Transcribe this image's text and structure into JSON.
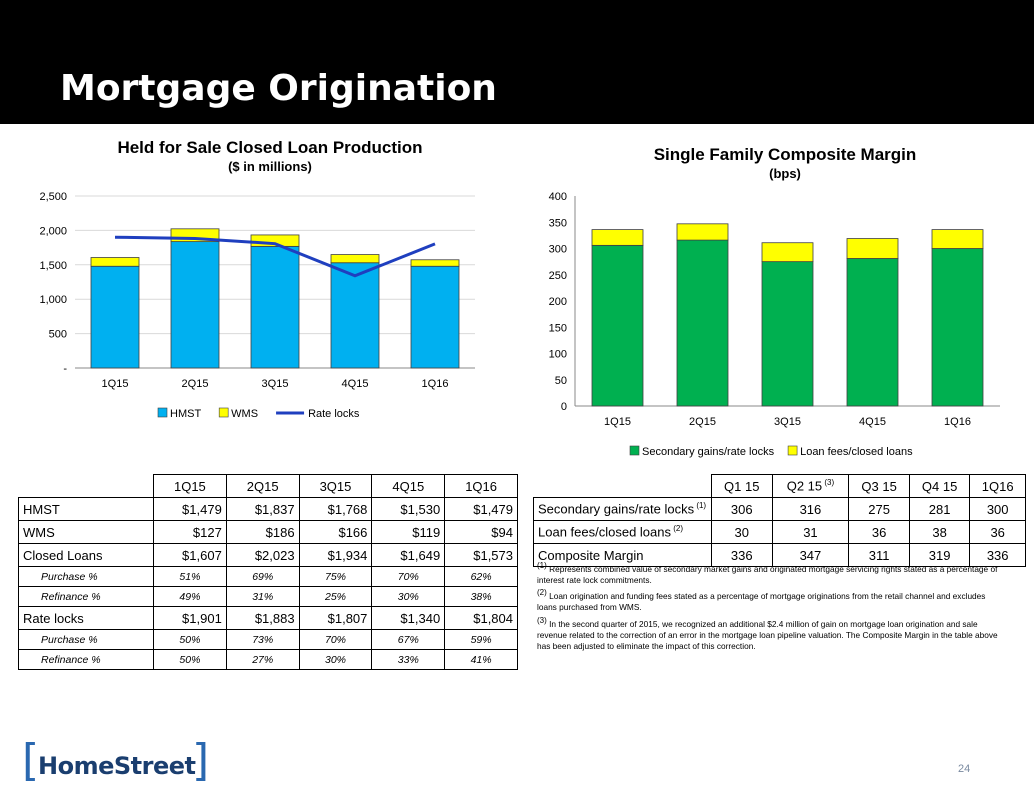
{
  "page": {
    "title": "Mortgage Origination",
    "page_number": "24"
  },
  "chart_data": [
    {
      "type": "bar",
      "stacked": true,
      "title": "Held for Sale Closed Loan Production",
      "subtitle": "($ in millions)",
      "categories": [
        "1Q15",
        "2Q15",
        "3Q15",
        "4Q15",
        "1Q16"
      ],
      "series": [
        {
          "name": "HMST",
          "type": "bar",
          "color": "#00b0f0",
          "values": [
            1479,
            1837,
            1768,
            1530,
            1479
          ]
        },
        {
          "name": "WMS",
          "type": "bar",
          "color": "#ffff00",
          "values": [
            127,
            186,
            166,
            119,
            94
          ]
        },
        {
          "name": "Rate locks",
          "type": "line",
          "color": "#1f3fbf",
          "values": [
            1901,
            1883,
            1807,
            1340,
            1804
          ]
        }
      ],
      "ylim": [
        0,
        2500
      ],
      "yticks": [
        0,
        500,
        1000,
        1500,
        2000,
        2500
      ],
      "ytick_labels": [
        "-",
        "500",
        "1,000",
        "1,500",
        "2,000",
        "2,500"
      ],
      "grid": true,
      "legend": "bottom"
    },
    {
      "type": "bar",
      "stacked": true,
      "title": "Single Family Composite Margin",
      "subtitle": "(bps)",
      "categories": [
        "1Q15",
        "2Q15",
        "3Q15",
        "4Q15",
        "1Q16"
      ],
      "series": [
        {
          "name": "Secondary gains/rate locks",
          "color": "#00b050",
          "values": [
            306,
            316,
            275,
            281,
            300
          ]
        },
        {
          "name": "Loan fees/closed loans",
          "color": "#ffff00",
          "values": [
            30,
            31,
            36,
            38,
            36
          ]
        }
      ],
      "ylim": [
        0,
        400
      ],
      "yticks": [
        0,
        50,
        100,
        150,
        200,
        250,
        300,
        350,
        400
      ],
      "ytick_labels": [
        "0",
        "50",
        "100",
        "150",
        "200",
        "250",
        "300",
        "350",
        "400"
      ],
      "grid": false,
      "legend": "bottom"
    }
  ],
  "left_table": {
    "headers": [
      "1Q15",
      "2Q15",
      "3Q15",
      "4Q15",
      "1Q16"
    ],
    "rows": [
      {
        "label": "HMST",
        "sub": false,
        "values": [
          "$1,479",
          "$1,837",
          "$1,768",
          "$1,530",
          "$1,479"
        ]
      },
      {
        "label": "WMS",
        "sub": false,
        "values": [
          "$127",
          "$186",
          "$166",
          "$119",
          "$94"
        ]
      },
      {
        "label": "Closed Loans",
        "sub": false,
        "values": [
          "$1,607",
          "$2,023",
          "$1,934",
          "$1,649",
          "$1,573"
        ]
      },
      {
        "label": "Purchase %",
        "sub": true,
        "values": [
          "51%",
          "69%",
          "75%",
          "70%",
          "62%"
        ]
      },
      {
        "label": "Refinance %",
        "sub": true,
        "values": [
          "49%",
          "31%",
          "25%",
          "30%",
          "38%"
        ]
      },
      {
        "label": "Rate locks",
        "sub": false,
        "values": [
          "$1,901",
          "$1,883",
          "$1,807",
          "$1,340",
          "$1,804"
        ]
      },
      {
        "label": "Purchase %",
        "sub": true,
        "values": [
          "50%",
          "73%",
          "70%",
          "67%",
          "59%"
        ]
      },
      {
        "label": "Refinance %",
        "sub": true,
        "values": [
          "50%",
          "27%",
          "30%",
          "33%",
          "41%"
        ]
      }
    ]
  },
  "right_table": {
    "headers": [
      {
        "text": "Q1 15",
        "sup": ""
      },
      {
        "text": "Q2 15",
        "sup": "(3)"
      },
      {
        "text": "Q3 15",
        "sup": ""
      },
      {
        "text": "Q4 15",
        "sup": ""
      },
      {
        "text": "1Q16",
        "sup": ""
      }
    ],
    "rows": [
      {
        "label": "Secondary gains/rate locks",
        "sup": "(1)",
        "values": [
          "306",
          "316",
          "275",
          "281",
          "300"
        ]
      },
      {
        "label": "Loan fees/closed loans",
        "sup": "(2)",
        "values": [
          "30",
          "31",
          "36",
          "38",
          "36"
        ]
      },
      {
        "label": "Composite Margin",
        "sup": "",
        "values": [
          "336",
          "347",
          "311",
          "319",
          "336"
        ]
      }
    ]
  },
  "footnotes": [
    {
      "marker": "(1)",
      "text": "Represents combined value of secondary market gains and originated mortgage servicing rights stated as a percentage of interest rate lock commitments."
    },
    {
      "marker": "(2)",
      "text": "Loan origination and funding fees stated as a percentage of mortgage originations from the retail channel and excludes loans purchased from WMS."
    },
    {
      "marker": "(3)",
      "text": "In the second quarter of 2015, we recognized an additional $2.4 million of gain on mortgage loan origination and sale revenue related to the correction of an error in the mortgage loan pipeline valuation. The Composite Margin in the table above has been adjusted to eliminate the impact of this correction."
    }
  ],
  "logo": {
    "bracket_left": "[",
    "wordmark": "HomeStreet",
    "bracket_right": "]"
  }
}
